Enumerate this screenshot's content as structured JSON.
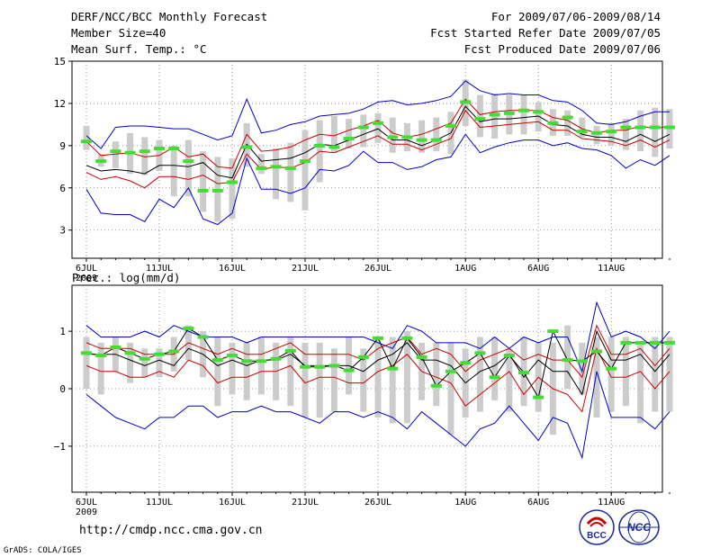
{
  "header": {
    "title": "DERF/NCC/BCC Monthly Forecast",
    "member_size": "Member Size=40",
    "variable": "Mean Surf. Temp.: °C",
    "period": "For 2009/07/06-2009/08/14",
    "refer_date": "Fcst Started Refer Date 2009/07/05",
    "produced_date": "Fcst Produced Date 2009/07/06"
  },
  "footer": {
    "url": "http://cmdp.ncc.cma.gov.cn",
    "credit": "GrADS: COLA/IGES",
    "logo_bcc_label": "BCC",
    "logo_ncc_label": "NCC"
  },
  "colors": {
    "envelope": "#0000cc",
    "spread": "#cc0000",
    "mean": "#000000",
    "observed": "#44dd33",
    "box": "#cccccc"
  },
  "chart_data": [
    {
      "type": "line",
      "title": "Mean Surf. Temp.: °C",
      "x_start_day": 0,
      "x_ticks": [
        {
          "day": 0,
          "label": "6JUL",
          "sub": "2009"
        },
        {
          "day": 5,
          "label": "11JUL"
        },
        {
          "day": 10,
          "label": "16JUL"
        },
        {
          "day": 15,
          "label": "21JUL"
        },
        {
          "day": 20,
          "label": "26JUL"
        },
        {
          "day": 26,
          "label": "1AUG"
        },
        {
          "day": 31,
          "label": "6AUG"
        },
        {
          "day": 36,
          "label": "11AUG"
        }
      ],
      "ylim": [
        1,
        15
      ],
      "y_ticks": [
        3,
        6,
        9,
        12,
        15
      ],
      "grid": true,
      "series": [
        {
          "name": "max",
          "color": "#0000cc",
          "values": [
            9.7,
            8.8,
            10.3,
            10.4,
            10.4,
            10.3,
            10.2,
            10.2,
            9.8,
            9.4,
            9.7,
            12.3,
            9.9,
            10.1,
            10.5,
            10.7,
            11.1,
            11.2,
            11.3,
            11.6,
            12.1,
            12.2,
            11.9,
            12.0,
            12.2,
            12.5,
            13.6,
            12.9,
            12.6,
            12.7,
            12.6,
            12.6,
            12.2,
            12.1,
            11.5,
            10.6,
            10.5,
            10.7,
            11.1,
            11.4,
            11.4
          ]
        },
        {
          "name": "upper",
          "color": "#cc0000",
          "values": [
            9.3,
            8.3,
            8.4,
            8.5,
            8.2,
            8.3,
            8.9,
            8.2,
            8.4,
            7.5,
            7.4,
            9.8,
            8.6,
            8.7,
            8.9,
            9.4,
            9.8,
            9.7,
            10.1,
            10.4,
            10.8,
            9.9,
            9.6,
            9.8,
            10.2,
            10.6,
            12.3,
            11.2,
            11.4,
            11.5,
            11.5,
            11.5,
            11.0,
            10.8,
            10.2,
            9.9,
            10.1,
            10.1,
            10.4,
            10.2,
            10.4
          ]
        },
        {
          "name": "mean",
          "color": "#000000",
          "values": [
            7.6,
            7.2,
            7.3,
            7.2,
            7.0,
            7.6,
            7.6,
            7.5,
            7.8,
            6.9,
            6.7,
            9.1,
            7.9,
            8.0,
            8.1,
            8.5,
            9.1,
            9.0,
            9.4,
            9.8,
            10.2,
            9.4,
            9.4,
            9.0,
            9.4,
            9.9,
            11.8,
            10.7,
            10.9,
            10.9,
            11.0,
            11.1,
            10.5,
            10.4,
            9.8,
            9.6,
            9.6,
            9.3,
            9.8,
            9.3,
            9.8
          ]
        },
        {
          "name": "lower",
          "color": "#cc0000",
          "values": [
            7.1,
            6.6,
            6.8,
            6.5,
            6.0,
            6.8,
            6.8,
            6.6,
            6.9,
            6.3,
            6.4,
            8.4,
            7.3,
            7.5,
            7.4,
            7.8,
            8.6,
            8.5,
            8.9,
            9.3,
            9.7,
            9.1,
            9.1,
            8.7,
            9.1,
            9.5,
            11.5,
            10.3,
            10.4,
            10.5,
            10.6,
            10.7,
            10.1,
            10.1,
            9.5,
            9.4,
            9.3,
            9.0,
            9.4,
            8.9,
            9.4
          ]
        },
        {
          "name": "min",
          "color": "#0000cc",
          "values": [
            5.9,
            4.2,
            4.1,
            4.1,
            3.6,
            5.2,
            4.6,
            6.0,
            3.8,
            3.4,
            4.2,
            8.1,
            5.9,
            5.9,
            5.6,
            6.0,
            7.3,
            7.2,
            7.6,
            8.6,
            7.8,
            7.8,
            7.3,
            7.5,
            8.0,
            8.2,
            9.8,
            8.5,
            8.9,
            9.2,
            9.4,
            9.4,
            9.0,
            9.2,
            8.8,
            8.7,
            8.3,
            7.4,
            8.0,
            7.6,
            8.3
          ]
        }
      ],
      "box_low": [
        8.7,
        7.5,
        7.4,
        7.0,
        6.9,
        7.2,
        5.4,
        5.4,
        4.3,
        3.6,
        3.8,
        7.5,
        7.0,
        5.2,
        5.0,
        4.4,
        6.4,
        8.5,
        8.8,
        8.9,
        9.2,
        8.5,
        8.6,
        8.5,
        8.6,
        8.4,
        10.4,
        9.6,
        9.5,
        9.8,
        9.8,
        10.0,
        9.7,
        9.7,
        9.6,
        9.1,
        9.0,
        8.7,
        8.6,
        8.2,
        8.8
      ],
      "box_high": [
        10.4,
        8.4,
        9.3,
        9.9,
        9.6,
        9.4,
        9.0,
        9.4,
        8.6,
        8.2,
        8.1,
        10.6,
        8.4,
        8.8,
        9.2,
        10.1,
        10.8,
        11.1,
        10.9,
        11.2,
        11.3,
        11.0,
        10.6,
        10.8,
        11.0,
        11.4,
        13.7,
        12.6,
        12.7,
        12.6,
        12.6,
        12.1,
        11.6,
        11.5,
        11.0,
        10.4,
        10.6,
        10.9,
        11.5,
        11.7,
        11.6
      ],
      "observed": [
        9.3,
        7.9,
        8.6,
        8.5,
        8.6,
        8.8,
        8.8,
        7.9,
        5.8,
        5.8,
        6.4,
        8.9,
        7.4,
        7.5,
        7.4,
        7.9,
        9.0,
        8.9,
        9.5,
        10.3,
        10.6,
        9.6,
        9.6,
        9.4,
        9.4,
        10.4,
        12.1,
        10.9,
        11.2,
        11.3,
        11.5,
        11.4,
        10.6,
        11.0,
        10.0,
        9.9,
        10.0,
        10.3,
        10.3,
        10.3,
        10.3
      ]
    },
    {
      "type": "line",
      "title": "Prec.: log(mm/d)",
      "x_start_day": 0,
      "x_ticks": [
        {
          "day": 0,
          "label": "6JUL",
          "sub": "2009"
        },
        {
          "day": 5,
          "label": "11JUL"
        },
        {
          "day": 10,
          "label": "16JUL"
        },
        {
          "day": 15,
          "label": "21JUL"
        },
        {
          "day": 20,
          "label": "26JUL"
        },
        {
          "day": 26,
          "label": "1AUG"
        },
        {
          "day": 31,
          "label": "6AUG"
        },
        {
          "day": 36,
          "label": "11AUG"
        }
      ],
      "ylim": [
        -1.8,
        1.8
      ],
      "y_ticks": [
        -1,
        0,
        1
      ],
      "grid": true,
      "series": [
        {
          "name": "max",
          "color": "#0000cc",
          "values": [
            1.1,
            0.9,
            0.9,
            0.9,
            1.0,
            0.9,
            1.1,
            1.0,
            0.9,
            0.9,
            0.9,
            0.8,
            0.9,
            0.9,
            0.9,
            0.9,
            0.9,
            0.9,
            0.9,
            0.9,
            0.8,
            0.7,
            1.1,
            1.0,
            0.8,
            0.8,
            0.8,
            0.7,
            0.9,
            0.7,
            0.9,
            0.8,
            0.9,
            0.9,
            0.3,
            1.5,
            0.9,
            1.0,
            0.9,
            0.7,
            1.0
          ]
        },
        {
          "name": "upper",
          "color": "#cc0000",
          "values": [
            0.8,
            0.7,
            0.7,
            0.7,
            0.6,
            0.6,
            0.6,
            0.8,
            0.7,
            0.6,
            0.7,
            0.6,
            0.6,
            0.7,
            0.8,
            0.6,
            0.6,
            0.6,
            0.6,
            0.5,
            0.7,
            0.8,
            0.9,
            0.6,
            0.7,
            0.6,
            0.3,
            0.5,
            0.6,
            0.7,
            0.5,
            0.6,
            0.5,
            0.5,
            0.2,
            1.1,
            0.6,
            0.6,
            0.7,
            0.4,
            0.7
          ]
        },
        {
          "name": "mean",
          "color": "#000000",
          "values": [
            0.6,
            0.6,
            0.6,
            0.5,
            0.4,
            0.5,
            0.4,
            0.7,
            0.6,
            0.4,
            0.5,
            0.4,
            0.5,
            0.5,
            0.6,
            0.4,
            0.4,
            0.4,
            0.4,
            0.3,
            0.5,
            0.6,
            0.8,
            0.5,
            0.5,
            0.4,
            0.1,
            0.3,
            0.4,
            0.6,
            0.2,
            0.5,
            0.3,
            0.3,
            -0.1,
            1.0,
            0.5,
            0.5,
            0.6,
            0.3,
            0.6
          ]
        },
        {
          "name": "lower",
          "color": "#cc0000",
          "values": [
            0.4,
            0.3,
            0.3,
            0.2,
            0.2,
            0.3,
            0.2,
            0.5,
            0.4,
            0.1,
            0.2,
            0.2,
            0.3,
            0.3,
            0.4,
            0.1,
            0.2,
            0.2,
            0.1,
            0.1,
            0.3,
            0.4,
            0.6,
            0.3,
            0.2,
            0.1,
            -0.3,
            -0.1,
            0.1,
            0.3,
            -0.1,
            0.2,
            0.0,
            -0.1,
            -0.4,
            0.7,
            0.2,
            0.2,
            0.3,
            0.0,
            0.3
          ]
        },
        {
          "name": "min",
          "color": "#0000cc",
          "values": [
            -0.1,
            -0.3,
            -0.5,
            -0.6,
            -0.7,
            -0.5,
            -0.5,
            -0.3,
            -0.3,
            -0.5,
            -0.4,
            -0.4,
            -0.3,
            -0.4,
            -0.4,
            -0.5,
            -0.6,
            -0.4,
            -0.4,
            -0.5,
            -0.4,
            -0.5,
            -0.7,
            -0.4,
            -0.6,
            -0.8,
            -1.0,
            -0.7,
            -0.6,
            -0.3,
            -0.6,
            -0.9,
            -0.5,
            -0.6,
            -1.2,
            0.3,
            -0.5,
            -0.5,
            -0.5,
            -0.7,
            -0.4
          ]
        },
        {
          "name": "observed_line",
          "color": "#000000",
          "values": [
            0.62,
            0.58,
            0.72,
            0.62,
            0.52,
            0.6,
            0.65,
            1.05,
            0.9,
            0.5,
            0.58,
            0.48,
            0.48,
            0.52,
            0.66,
            0.38,
            0.38,
            0.4,
            0.32,
            0.55,
            0.88,
            0.35,
            0.88,
            0.55,
            0.05,
            0.3,
            0.45,
            0.62,
            0.2,
            0.58,
            0.28,
            -0.15,
            1.0,
            0.5,
            0.48,
            0.65,
            0.35,
            0.8,
            0.8,
            0.8,
            0.8
          ]
        }
      ],
      "box_low": [
        0.0,
        -0.1,
        0.3,
        0.1,
        0.2,
        0.2,
        0.3,
        0.5,
        0.2,
        -0.3,
        -0.1,
        -0.2,
        -0.1,
        -0.2,
        -0.3,
        -0.5,
        -0.5,
        -0.4,
        -0.1,
        -0.4,
        -0.5,
        -0.6,
        -0.6,
        -0.2,
        -0.3,
        -0.8,
        -0.5,
        -0.4,
        -0.2,
        -0.4,
        -0.3,
        -0.4,
        -0.8,
        0.0,
        -0.1,
        -0.5,
        -0.4,
        -0.3,
        -0.6,
        -0.4,
        -0.4
      ],
      "box_high": [
        0.9,
        0.8,
        0.9,
        0.8,
        0.7,
        0.7,
        0.9,
        1.1,
        1.0,
        0.9,
        0.8,
        0.8,
        0.9,
        0.8,
        0.9,
        0.8,
        0.8,
        0.7,
        0.9,
        0.7,
        0.9,
        0.9,
        1.0,
        0.8,
        0.8,
        0.8,
        0.7,
        0.9,
        0.9,
        0.7,
        0.9,
        0.8,
        0.8,
        1.1,
        0.8,
        0.9,
        0.9,
        0.9,
        0.8,
        0.9,
        0.9
      ],
      "observed": [
        0.62,
        0.58,
        0.72,
        0.62,
        0.52,
        0.6,
        0.65,
        1.05,
        0.9,
        0.5,
        0.58,
        0.48,
        0.48,
        0.52,
        0.66,
        0.38,
        0.38,
        0.4,
        0.32,
        0.55,
        0.88,
        0.35,
        0.88,
        0.55,
        0.05,
        0.3,
        0.45,
        0.62,
        0.2,
        0.58,
        0.28,
        -0.15,
        1.0,
        0.5,
        0.48,
        0.65,
        0.35,
        0.8,
        0.8,
        0.8,
        0.8
      ]
    }
  ]
}
